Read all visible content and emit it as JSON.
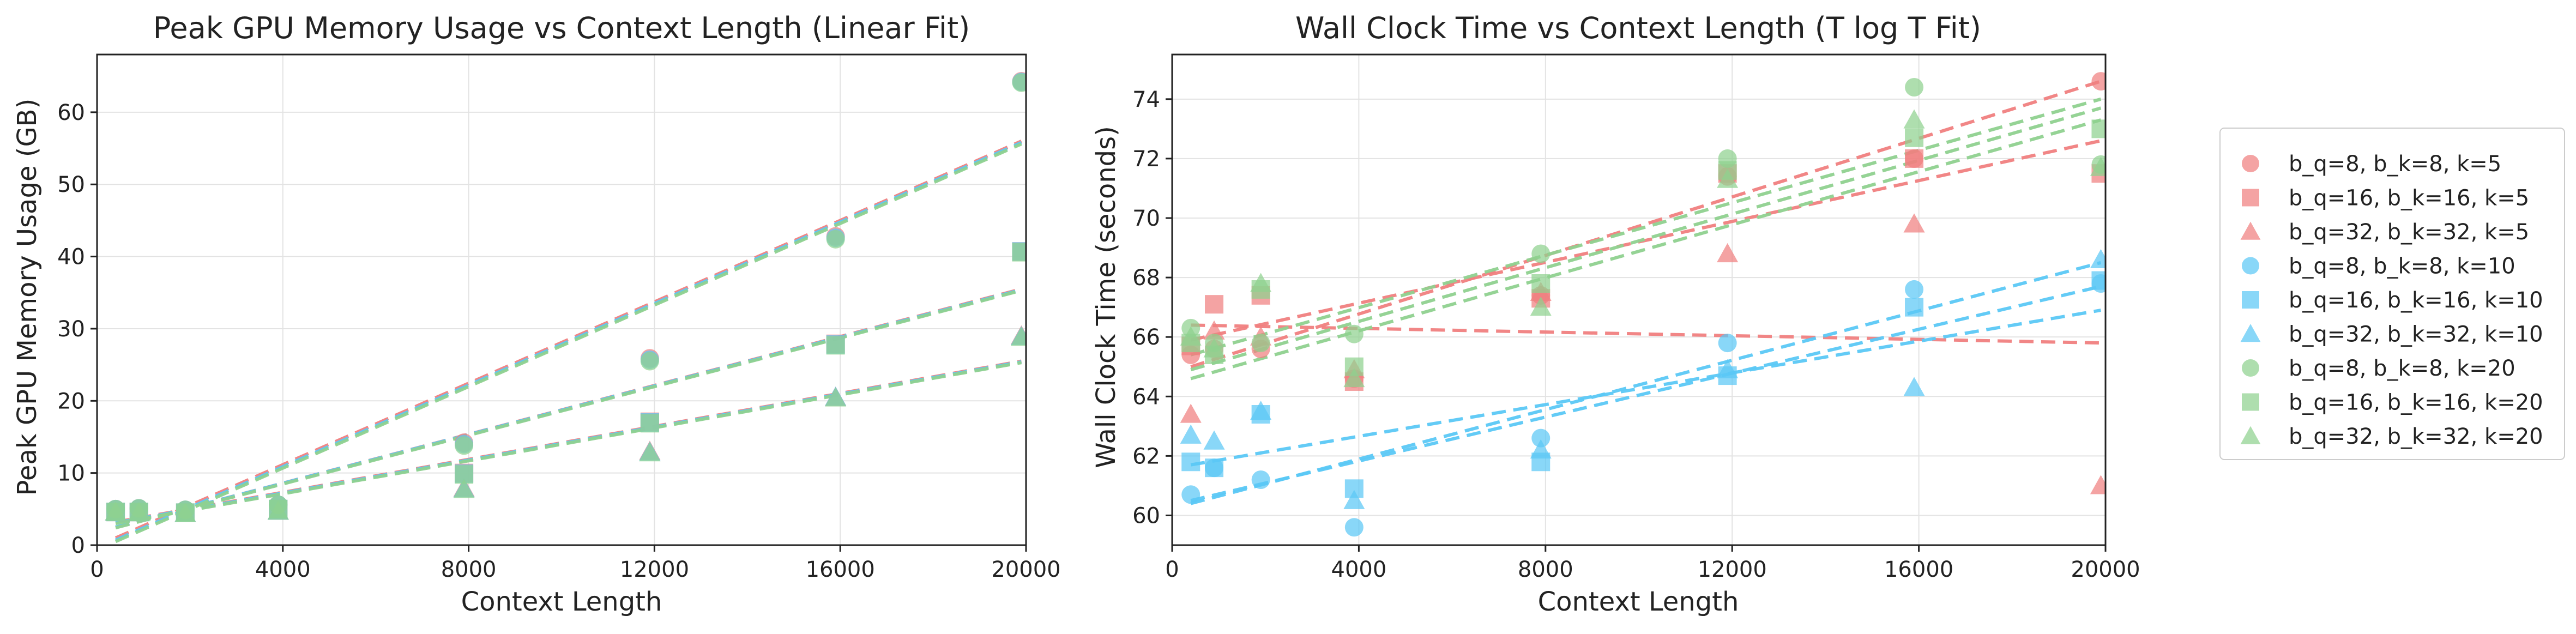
{
  "colors": {
    "red": "#f08080",
    "blue": "#5bc8f5",
    "green": "#8fd18f"
  },
  "legend": [
    {
      "label": "b_q=8, b_k=8, k=5",
      "marker": "circle",
      "color": "#f08080"
    },
    {
      "label": "b_q=16, b_k=16, k=5",
      "marker": "square",
      "color": "#f08080"
    },
    {
      "label": "b_q=32, b_k=32, k=5",
      "marker": "triangle",
      "color": "#f08080"
    },
    {
      "label": "b_q=8, b_k=8, k=10",
      "marker": "circle",
      "color": "#5bc8f5"
    },
    {
      "label": "b_q=16, b_k=16, k=10",
      "marker": "square",
      "color": "#5bc8f5"
    },
    {
      "label": "b_q=32, b_k=32, k=10",
      "marker": "triangle",
      "color": "#5bc8f5"
    },
    {
      "label": "b_q=8, b_k=8, k=20",
      "marker": "circle",
      "color": "#8fd18f"
    },
    {
      "label": "b_q=16, b_k=16, k=20",
      "marker": "square",
      "color": "#8fd18f"
    },
    {
      "label": "b_q=32, b_k=32, k=20",
      "marker": "triangle",
      "color": "#8fd18f"
    }
  ],
  "chart_data": [
    {
      "type": "scatter",
      "title": "Peak GPU Memory Usage vs Context Length (Linear Fit)",
      "xlabel": "Context Length",
      "ylabel": "Peak GPU Memory Usage (GB)",
      "xlim": [
        0,
        20000
      ],
      "ylim": [
        0,
        68
      ],
      "xticks": [
        0,
        4000,
        8000,
        12000,
        16000,
        20000
      ],
      "yticks": [
        0,
        10,
        20,
        30,
        40,
        50,
        60
      ],
      "grid": true,
      "x": [
        400,
        900,
        1900,
        3900,
        7900,
        11900,
        15900,
        19900
      ],
      "series": [
        {
          "name": "b_q=8, b_k=8, k=5",
          "marker": "circle",
          "color": "#f08080",
          "values": [
            5.0,
            5.1,
            4.9,
            5.6,
            14.2,
            25.9,
            42.8,
            64.3
          ],
          "fit": [
            1.0,
            56.0
          ]
        },
        {
          "name": "b_q=16, b_k=16, k=5",
          "marker": "square",
          "color": "#f08080",
          "values": [
            4.6,
            4.6,
            4.5,
            5.0,
            10.0,
            17.1,
            27.9,
            40.7
          ],
          "fit": [
            2.5,
            35.5
          ]
        },
        {
          "name": "b_q=32, b_k=32, k=5",
          "marker": "triangle",
          "color": "#f08080",
          "values": [
            4.6,
            4.5,
            4.4,
            4.7,
            7.9,
            13.0,
            20.5,
            29.0
          ],
          "fit": [
            3.2,
            25.5
          ]
        },
        {
          "name": "b_q=8, b_k=8, k=10",
          "marker": "circle",
          "color": "#5bc8f5",
          "values": [
            5.0,
            5.1,
            4.9,
            5.6,
            14.0,
            25.7,
            42.6,
            64.2
          ],
          "fit": [
            0.7,
            55.8
          ]
        },
        {
          "name": "b_q=16, b_k=16, k=10",
          "marker": "square",
          "color": "#5bc8f5",
          "values": [
            4.6,
            4.6,
            4.5,
            5.0,
            9.9,
            17.0,
            27.8,
            40.7
          ],
          "fit": [
            2.5,
            35.4
          ]
        },
        {
          "name": "b_q=32, b_k=32, k=10",
          "marker": "triangle",
          "color": "#5bc8f5",
          "values": [
            4.6,
            4.5,
            4.4,
            4.7,
            7.8,
            12.9,
            20.5,
            28.9
          ],
          "fit": [
            3.1,
            25.4
          ]
        },
        {
          "name": "b_q=8, b_k=8, k=20",
          "marker": "circle",
          "color": "#8fd18f",
          "values": [
            5.0,
            5.1,
            4.9,
            5.6,
            13.8,
            25.5,
            42.4,
            64.1
          ],
          "fit": [
            0.5,
            55.6
          ]
        },
        {
          "name": "b_q=16, b_k=16, k=20",
          "marker": "square",
          "color": "#8fd18f",
          "values": [
            4.6,
            4.6,
            4.5,
            5.0,
            9.8,
            16.9,
            27.7,
            40.6
          ],
          "fit": [
            2.4,
            35.3
          ]
        },
        {
          "name": "b_q=32, b_k=32, k=20",
          "marker": "triangle",
          "color": "#8fd18f",
          "values": [
            4.6,
            4.5,
            4.4,
            4.7,
            7.7,
            12.8,
            20.4,
            28.8
          ],
          "fit": [
            3.0,
            25.3
          ]
        }
      ]
    },
    {
      "type": "scatter",
      "title": "Wall Clock Time vs Context Length (T log T Fit)",
      "xlabel": "Context Length",
      "ylabel": "Wall Clock Time (seconds)",
      "xlim": [
        0,
        20000
      ],
      "ylim": [
        59,
        75.5
      ],
      "xticks": [
        0,
        4000,
        8000,
        12000,
        16000,
        20000
      ],
      "yticks": [
        60,
        62,
        64,
        66,
        68,
        70,
        72,
        74
      ],
      "grid": true,
      "x": [
        400,
        900,
        1900,
        3900,
        7900,
        11900,
        15900,
        19900
      ],
      "series": [
        {
          "name": "b_q=8, b_k=8, k=5",
          "marker": "circle",
          "color": "#f08080",
          "values": [
            65.4,
            65.6,
            65.6,
            64.6,
            67.4,
            71.4,
            72.0,
            74.6
          ],
          "fit": [
            65.0,
            74.6
          ]
        },
        {
          "name": "b_q=16, b_k=16, k=5",
          "marker": "square",
          "color": "#f08080",
          "values": [
            65.7,
            67.1,
            67.4,
            64.5,
            67.3,
            71.5,
            72.0,
            71.5
          ],
          "fit": [
            65.9,
            72.6
          ]
        },
        {
          "name": "b_q=32, b_k=32, k=5",
          "marker": "triangle",
          "color": "#f08080",
          "values": [
            63.4,
            66.2,
            66.0,
            64.9,
            67.5,
            68.8,
            69.8,
            61.0
          ],
          "fit": [
            66.4,
            65.8
          ]
        },
        {
          "name": "b_q=8, b_k=8, k=10",
          "marker": "circle",
          "color": "#5bc8f5",
          "values": [
            60.7,
            61.6,
            61.2,
            59.6,
            62.6,
            65.8,
            67.6,
            67.8
          ],
          "fit": [
            60.4,
            68.5
          ]
        },
        {
          "name": "b_q=16, b_k=16, k=10",
          "marker": "square",
          "color": "#5bc8f5",
          "values": [
            61.8,
            61.6,
            63.4,
            60.9,
            61.8,
            64.7,
            67.0,
            67.9
          ],
          "fit": [
            60.5,
            67.7
          ]
        },
        {
          "name": "b_q=32, b_k=32, k=10",
          "marker": "triangle",
          "color": "#5bc8f5",
          "values": [
            62.7,
            62.5,
            63.5,
            60.5,
            62.2,
            64.9,
            64.3,
            68.6
          ],
          "fit": [
            61.7,
            66.9
          ]
        },
        {
          "name": "b_q=8, b_k=8, k=20",
          "marker": "circle",
          "color": "#8fd18f",
          "values": [
            66.3,
            65.8,
            65.8,
            66.1,
            68.8,
            72.0,
            74.4,
            71.8
          ],
          "fit": [
            65.4,
            74.0
          ]
        },
        {
          "name": "b_q=16, b_k=16, k=20",
          "marker": "square",
          "color": "#8fd18f",
          "values": [
            65.8,
            65.4,
            67.6,
            65.0,
            67.8,
            71.6,
            72.7,
            73.0
          ],
          "fit": [
            64.9,
            73.7
          ]
        },
        {
          "name": "b_q=32, b_k=32, k=20",
          "marker": "triangle",
          "color": "#8fd18f",
          "values": [
            66.0,
            65.6,
            67.8,
            64.6,
            67.0,
            71.3,
            73.3,
            71.7
          ],
          "fit": [
            64.6,
            73.3
          ]
        }
      ]
    }
  ]
}
